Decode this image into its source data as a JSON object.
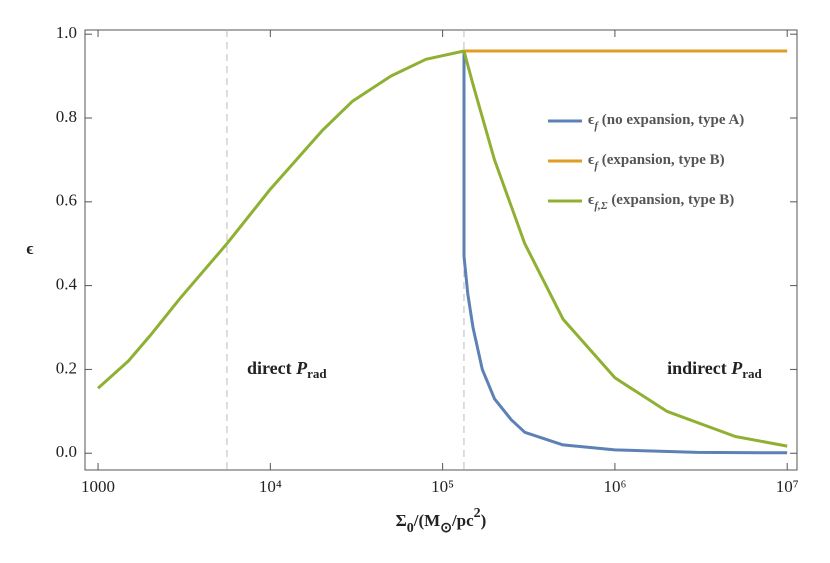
{
  "chart_data": {
    "type": "line",
    "ylabel": "ϵ",
    "xlabel": [
      {
        "text": "Σ"
      },
      {
        "text": "0",
        "sub": true
      },
      {
        "text": "/(M"
      },
      {
        "text": "⊙",
        "sub": true
      },
      {
        "text": "/pc"
      },
      {
        "text": "2",
        "sup": true
      },
      {
        "text": ")"
      }
    ],
    "xlog": true,
    "xlim": [
      840,
      11400000
    ],
    "ylim": [
      -0.04,
      1.01
    ],
    "xticks": [
      1000,
      {
        "value": 10000,
        "label": "10⁴"
      },
      {
        "value": 100000,
        "label": "10⁵"
      },
      {
        "value": 1000000,
        "label": "10⁶"
      },
      {
        "value": 10000000,
        "label": "10⁷"
      }
    ],
    "yticks": [
      {
        "value": 0,
        "label": "0.0"
      },
      0.2,
      0.4,
      0.6,
      0.8,
      {
        "value": 1,
        "label": "1.0"
      }
    ],
    "vlines": [
      5600,
      133000
    ],
    "annotations": [
      {
        "text": "direct ",
        "var": "P",
        "sub": "rad",
        "x": 5600
      },
      {
        "text": "indirect ",
        "var": "P",
        "sub": "rad",
        "x": 3000000
      }
    ],
    "legend": "upper right",
    "series": [
      {
        "symbol": "ϵ",
        "sub": "f",
        "name": " (no expansion, type A)",
        "color": "#5e81b5",
        "x": [
          133000,
          133000,
          140000,
          150000,
          170000,
          200000,
          250000,
          300000,
          500000,
          1000000,
          3000000,
          10000000
        ],
        "values": [
          0.96,
          0.47,
          0.38,
          0.3,
          0.2,
          0.13,
          0.08,
          0.05,
          0.02,
          0.008,
          0.002,
          0.001
        ]
      },
      {
        "symbol": "ϵ",
        "sub": "f",
        "name": " (expansion, type B)",
        "color": "#e19c24",
        "x": [
          133000,
          10000000
        ],
        "values": [
          0.96,
          0.96
        ]
      },
      {
        "symbol": "ϵ",
        "sub": "f,Σ",
        "name": " (expansion, type B)",
        "color": "#8fb032",
        "x": [
          1000,
          1500,
          2000,
          3000,
          5600,
          10000,
          20000,
          30000,
          50000,
          80000,
          133000,
          150000,
          200000,
          300000,
          500000,
          1000000,
          2000000,
          5000000,
          10000000
        ],
        "values": [
          0.155,
          0.22,
          0.28,
          0.37,
          0.5,
          0.63,
          0.77,
          0.84,
          0.9,
          0.94,
          0.96,
          0.88,
          0.7,
          0.5,
          0.32,
          0.18,
          0.1,
          0.04,
          0.017
        ]
      }
    ]
  }
}
